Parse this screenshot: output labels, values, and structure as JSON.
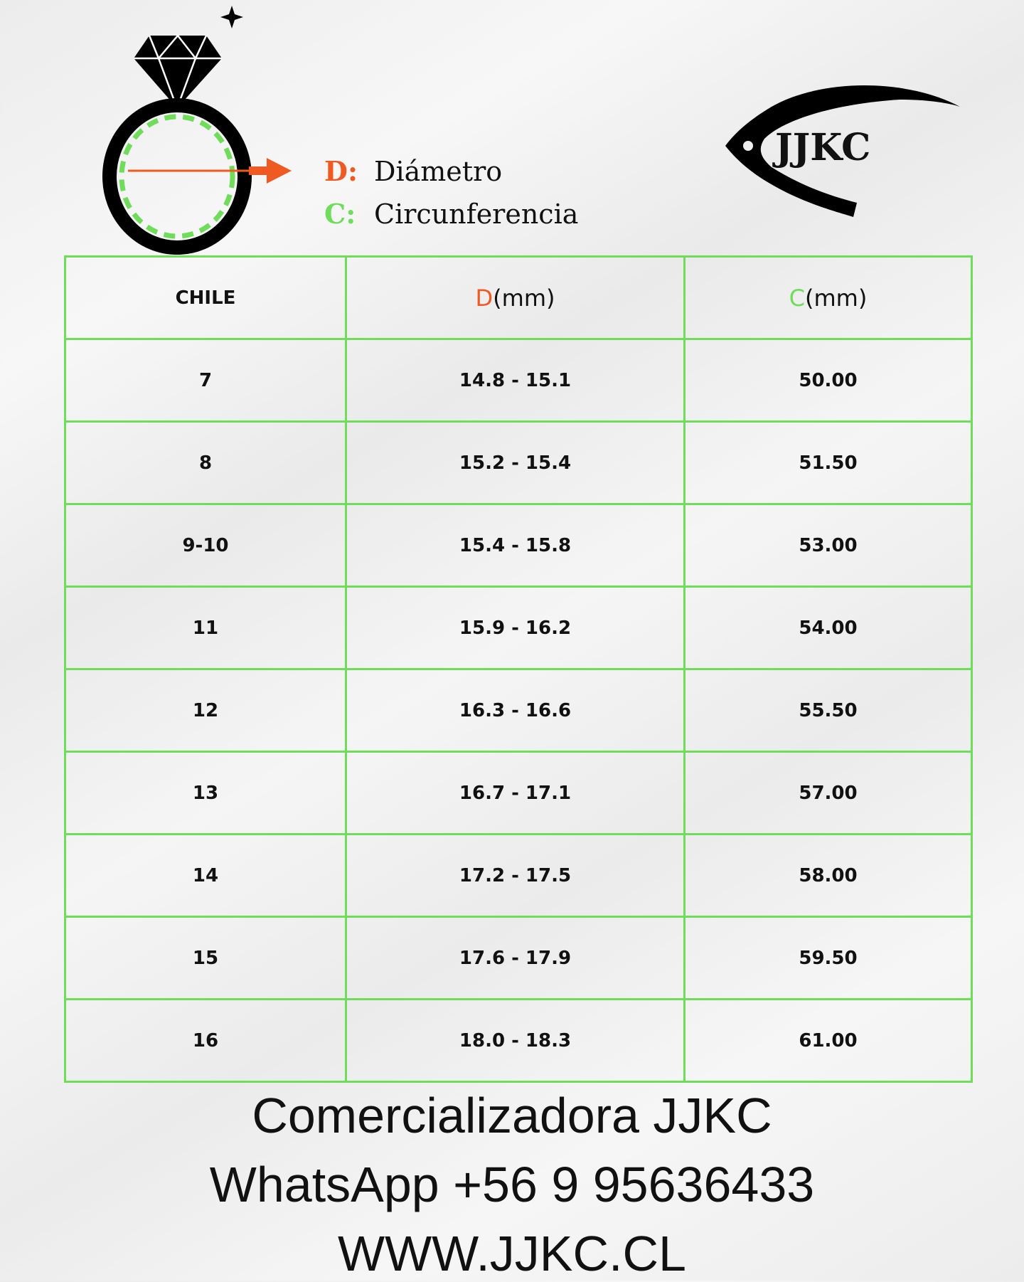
{
  "legend": {
    "d_key": "D:",
    "d_label": "Diámetro",
    "c_key": "C:",
    "c_label": "Circunferencia"
  },
  "logo_text": "JJKC",
  "colors": {
    "orange": "#f05a22",
    "green": "#6fdc5a",
    "table_border": "#6fdc5a"
  },
  "table": {
    "headers": {
      "col1": "CHILE",
      "col2_key": "D",
      "col2_unit": "(mm)",
      "col3_key": "C",
      "col3_unit": "(mm)"
    },
    "rows": [
      {
        "size": "7",
        "d": "14.8 - 15.1",
        "c": "50.00"
      },
      {
        "size": "8",
        "d": "15.2 - 15.4",
        "c": "51.50"
      },
      {
        "size": "9-10",
        "d": "15.4 - 15.8",
        "c": "53.00"
      },
      {
        "size": "11",
        "d": "15.9 - 16.2",
        "c": "54.00"
      },
      {
        "size": "12",
        "d": "16.3 - 16.6",
        "c": "55.50"
      },
      {
        "size": "13",
        "d": "16.7 - 17.1",
        "c": "57.00"
      },
      {
        "size": "14",
        "d": "17.2 -  17.5",
        "c": "58.00"
      },
      {
        "size": "15",
        "d": "17.6 - 17.9",
        "c": "59.50"
      },
      {
        "size": "16",
        "d": "18.0 - 18.3",
        "c": "61.00"
      }
    ]
  },
  "footer": {
    "company": "Comercializadora JJKC",
    "whatsapp": "WhatsApp +56 9 95636433",
    "website": "WWW.JJKC.CL"
  }
}
